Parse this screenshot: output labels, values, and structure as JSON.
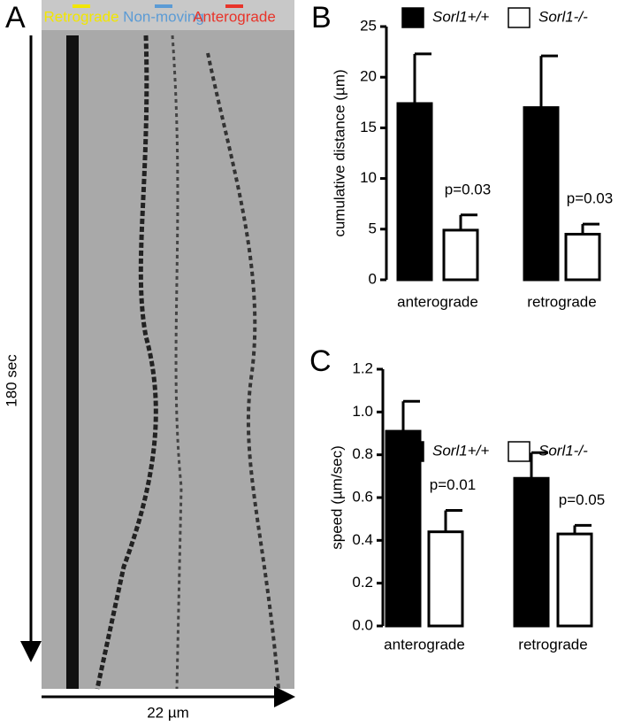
{
  "kymograph": {
    "panel": "A",
    "legend": [
      "Retrograde",
      "Non-moving",
      "Anterograde"
    ],
    "legend_colors": [
      "#f2e600",
      "#5b9bd5",
      "#e8342a"
    ],
    "y_label": "180 sec",
    "x_label": "22 µm"
  },
  "chart_data": [
    {
      "type": "bar",
      "panel": "B",
      "ylabel": "cumulative distance (µm)",
      "categories": [
        "anterograde",
        "retrograde"
      ],
      "series": [
        {
          "name": "Sorl1+/+",
          "color": "#000000",
          "values": [
            17.4,
            17.0
          ],
          "errors": [
            4.9,
            5.1
          ]
        },
        {
          "name": "Sorl1-/-",
          "color": "#ffffff",
          "values": [
            4.9,
            4.5
          ],
          "errors": [
            1.5,
            1.0
          ]
        }
      ],
      "annotations": [
        "p=0.03",
        "p=0.03"
      ],
      "ylim": [
        0,
        25
      ],
      "yticks": [
        0,
        5,
        10,
        15,
        20,
        25
      ]
    },
    {
      "type": "bar",
      "panel": "C",
      "ylabel": "speed (µm/sec)",
      "categories": [
        "anterograde",
        "retrograde"
      ],
      "series": [
        {
          "name": "Sorl1+/+",
          "color": "#000000",
          "values": [
            0.91,
            0.69
          ],
          "errors": [
            0.14,
            0.12
          ]
        },
        {
          "name": "Sorl1-/-",
          "color": "#ffffff",
          "values": [
            0.44,
            0.43
          ],
          "errors": [
            0.1,
            0.04
          ]
        }
      ],
      "annotations": [
        "p=0.01",
        "p=0.05"
      ],
      "ylim": [
        0,
        1.2
      ],
      "yticks": [
        {
          "value": 0,
          "label": "0.0"
        },
        {
          "value": 0.2,
          "label": "0.2"
        },
        {
          "value": 0.4,
          "label": "0.4"
        },
        {
          "value": 0.6,
          "label": "0.6"
        },
        {
          "value": 0.8,
          "label": "0.8"
        },
        {
          "value": 1.0,
          "label": "1.0"
        },
        {
          "value": 1.2,
          "label": "1.2"
        }
      ]
    }
  ]
}
